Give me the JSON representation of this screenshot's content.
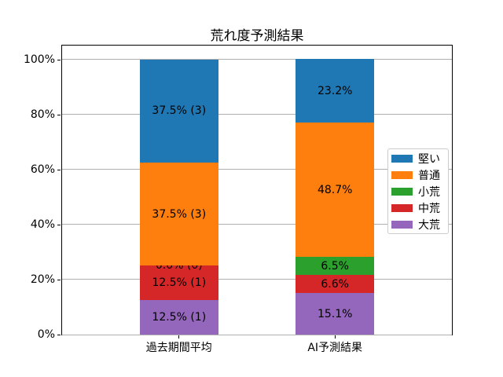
{
  "chart_data": {
    "type": "bar",
    "stacked": true,
    "title": "荒れ度予測結果",
    "xlabel": "",
    "ylabel": "",
    "categories": [
      "過去期間平均",
      "AI予測結果"
    ],
    "series": [
      {
        "name": "大荒",
        "color": "#9467bd",
        "values": [
          12.5,
          15.1
        ],
        "labels": [
          "12.5% (1)",
          "15.1%"
        ]
      },
      {
        "name": "中荒",
        "color": "#d62728",
        "values": [
          12.5,
          6.6
        ],
        "labels": [
          "12.5% (1)",
          "6.6%"
        ]
      },
      {
        "name": "小荒",
        "color": "#2ca02c",
        "values": [
          0.0,
          6.5
        ],
        "labels": [
          "0.0% (0)",
          "6.5%"
        ]
      },
      {
        "name": "普通",
        "color": "#ff7f0e",
        "values": [
          37.5,
          48.7
        ],
        "labels": [
          "37.5% (3)",
          "48.7%"
        ]
      },
      {
        "name": "堅い",
        "color": "#1f77b4",
        "values": [
          37.5,
          23.2
        ],
        "labels": [
          "37.5% (3)",
          "23.2%"
        ]
      }
    ],
    "legend": {
      "position": "right-inside",
      "entries": [
        "堅い",
        "普通",
        "小荒",
        "中荒",
        "大荒"
      ]
    },
    "y_ticks": [
      "0%",
      "20%",
      "40%",
      "60%",
      "80%",
      "100%"
    ],
    "ylim": [
      0,
      105
    ],
    "grid": true,
    "grid_color": "#b0b0b0",
    "background_color": "#ffffff"
  }
}
